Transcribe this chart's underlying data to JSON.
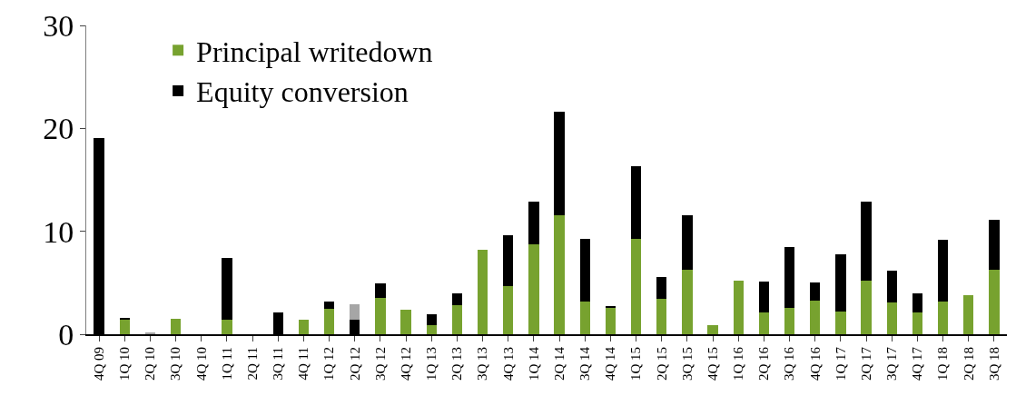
{
  "chart_data": {
    "type": "bar",
    "stacked": true,
    "categories": [
      "4Q 09",
      "1Q 10",
      "2Q 10",
      "3Q 10",
      "4Q 10",
      "1Q 11",
      "2Q 11",
      "3Q 11",
      "4Q 11",
      "1Q 12",
      "2Q 12",
      "3Q 12",
      "4Q 12",
      "1Q 13",
      "2Q 13",
      "3Q 13",
      "4Q 13",
      "1Q 14",
      "2Q 14",
      "3Q 14",
      "4Q 14",
      "1Q 15",
      "2Q 15",
      "3Q 15",
      "4Q 15",
      "1Q 16",
      "2Q 16",
      "3Q 16",
      "4Q 16",
      "1Q 17",
      "2Q 17",
      "3Q 17",
      "4Q 17",
      "1Q 18",
      "2Q 18",
      "3Q 18"
    ],
    "series": [
      {
        "name": "Principal writedown",
        "color": "#77a22f",
        "values": [
          0,
          1.4,
          0,
          1.5,
          0,
          1.4,
          0,
          0,
          1.4,
          2.5,
          0,
          3.5,
          2.4,
          0.9,
          2.8,
          8.2,
          4.7,
          8.7,
          11.6,
          3.2,
          2.6,
          9.3,
          3.4,
          6.3,
          0.9,
          5.2,
          2.1,
          2.6,
          3.3,
          2.2,
          5.2,
          3.1,
          2.1,
          3.2,
          3.8,
          6.3
        ]
      },
      {
        "name": "Equity conversion",
        "color": "#000000",
        "values": [
          19.1,
          0.2,
          0,
          0,
          0,
          6.0,
          0,
          2.1,
          0,
          0.7,
          1.4,
          1.4,
          0,
          1.0,
          1.2,
          0,
          4.9,
          4.2,
          10.0,
          6.1,
          0.1,
          7.0,
          2.2,
          5.3,
          0,
          0,
          3.0,
          5.9,
          1.7,
          5.6,
          7.7,
          3.1,
          1.9,
          6.0,
          0,
          4.8
        ]
      },
      {
        "color": "#a6a6a6",
        "values": [
          null,
          null,
          0.1,
          null,
          null,
          null,
          null,
          null,
          null,
          null,
          1.5,
          null,
          null,
          null,
          null,
          null,
          null,
          null,
          null,
          null,
          null,
          null,
          null,
          null,
          null,
          null,
          null,
          null,
          null,
          null,
          null,
          null,
          null,
          null,
          null,
          null
        ]
      }
    ],
    "ylim": [
      0,
      30
    ],
    "yticks": [
      0,
      10,
      20,
      30
    ],
    "legend": "top left"
  }
}
